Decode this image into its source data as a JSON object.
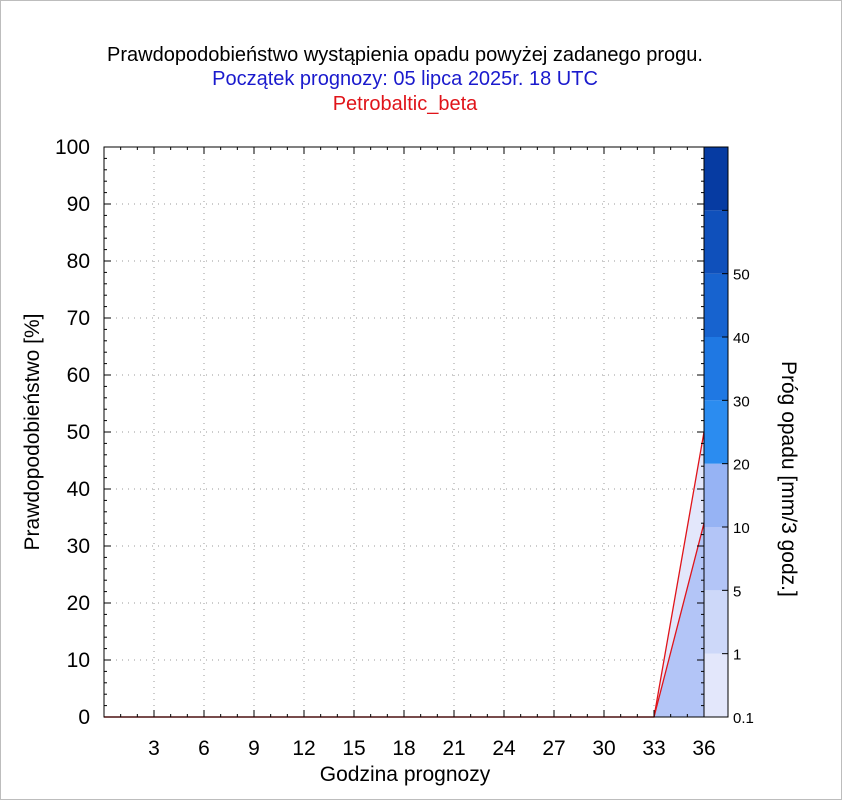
{
  "chart_data": {
    "type": "area",
    "title": "Prawdopodobieństwo wystąpienia opadu powyżej zadanego progu.",
    "subtitle": "Początek prognozy: 05 lipca 2025r. 18 UTC",
    "model": "Petrobaltic_beta",
    "xlabel": "Godzina prognozy",
    "ylabel": "Prawdopodobieństwo [%]",
    "colorbar_label": "Próg opadu [mm/3 godz.]",
    "x_ticks": [
      "3",
      "6",
      "9",
      "12",
      "15",
      "18",
      "21",
      "24",
      "27",
      "30",
      "33",
      "36"
    ],
    "y_ticks": [
      "0",
      "10",
      "20",
      "30",
      "40",
      "50",
      "60",
      "70",
      "80",
      "90",
      "100"
    ],
    "xlim": [
      0,
      36
    ],
    "ylim": [
      0,
      100
    ],
    "grid": true,
    "x": [
      0,
      3,
      6,
      9,
      12,
      15,
      18,
      21,
      24,
      27,
      30,
      33,
      36
    ],
    "series": [
      {
        "threshold": "0.1",
        "color": "#e3e7fb",
        "values": [
          0,
          0,
          0,
          0,
          0,
          0,
          0,
          0,
          0,
          0,
          0,
          0,
          50
        ]
      },
      {
        "threshold": "1",
        "color": "#b3c5f7",
        "values": [
          0,
          0,
          0,
          0,
          0,
          0,
          0,
          0,
          0,
          0,
          0,
          0,
          34
        ]
      }
    ],
    "colorbar": {
      "labels": [
        "0.1",
        "1",
        "5",
        "10",
        "20",
        "30",
        "40",
        "50"
      ],
      "colors": [
        "#e3e7fb",
        "#cdd8f9",
        "#b3c5f7",
        "#96b3f4",
        "#2b8cf0",
        "#1f78e3",
        "#1763cf",
        "#0f50bb",
        "#063ba2"
      ]
    },
    "line_color": "#e0141a"
  }
}
